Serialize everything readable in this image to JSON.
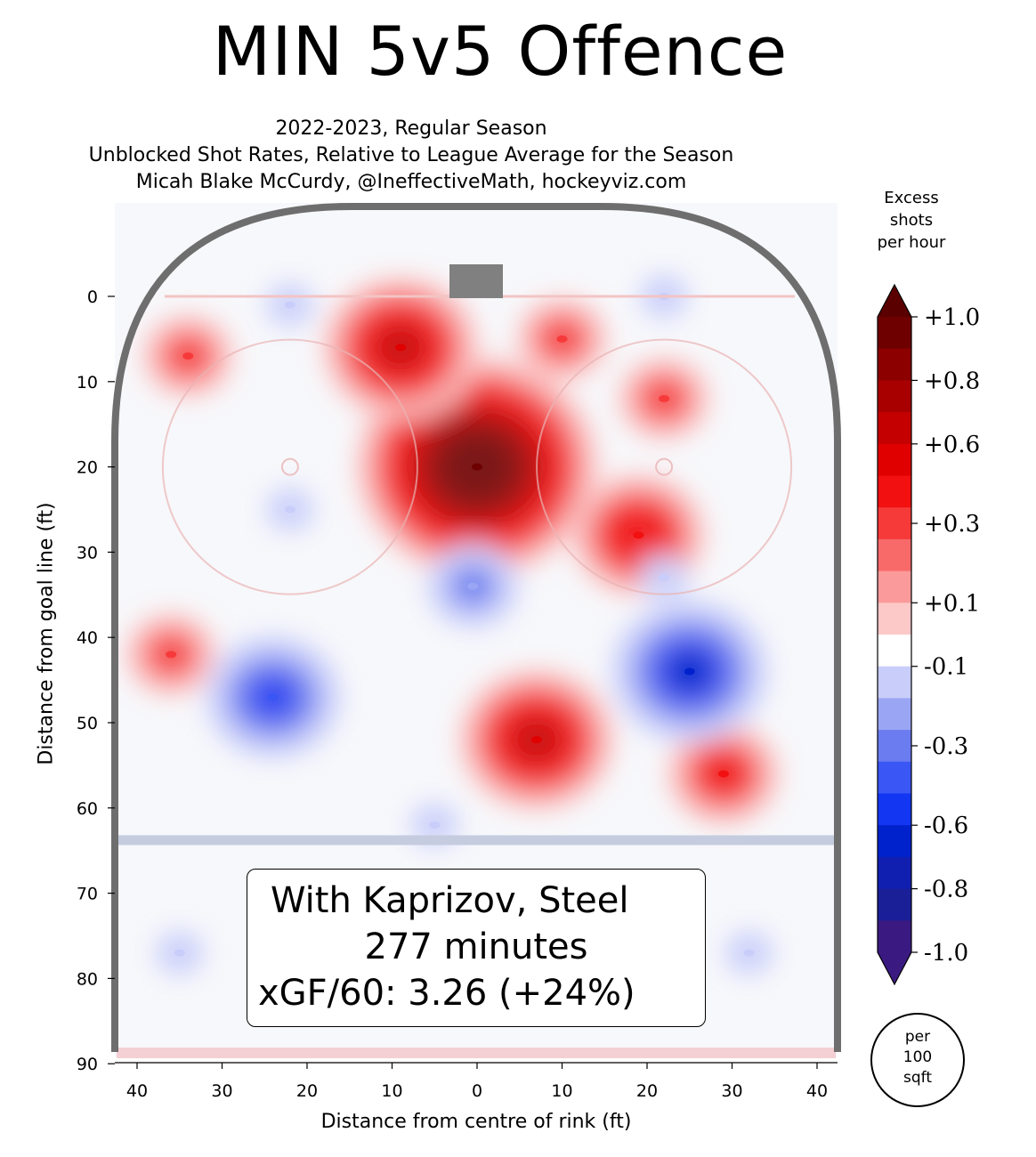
{
  "header": {
    "title": "MIN 5v5 Offence",
    "subtitle_1": "2022-2023, Regular Season",
    "subtitle_2": "Unblocked Shot Rates, Relative to League Average for the Season",
    "subtitle_3": "Micah Blake McCurdy, @IneffectiveMath, hockeyviz.com"
  },
  "legend": {
    "line_1": "With Kaprizov, Steel",
    "line_2": "277 minutes",
    "line_3": "xGF/60: 3.26 (+24%)"
  },
  "unit_note": {
    "line_1": "per",
    "line_2": "100",
    "line_3": "sqft"
  },
  "colorbar": {
    "title_1": "Excess",
    "title_2": "shots",
    "title_3": "per hour",
    "tick_labels": [
      "+1.0",
      "+0.8",
      "+0.6",
      "+0.3",
      "+0.1",
      "-0.1",
      "-0.3",
      "-0.6",
      "-0.8",
      "-1.0"
    ],
    "tick_values": [
      1.0,
      0.8,
      0.6,
      0.35,
      0.1,
      -0.1,
      -0.35,
      -0.6,
      -0.8,
      -1.0
    ],
    "levels": [
      "#6e0000",
      "#8c0000",
      "#a80000",
      "#c40000",
      "#e00000",
      "#f21010",
      "#f63a3a",
      "#f86a6a",
      "#fb9a9a",
      "#fdc8c8",
      "#ffffff",
      "#c8cdfa",
      "#9aa6f4",
      "#6a7cf0",
      "#3a56f4",
      "#1236f2",
      "#0022cc",
      "#101fb0",
      "#1a1f98",
      "#3a1a80"
    ]
  },
  "chart_data": {
    "type": "heatmap",
    "title": "MIN 5v5 Offence",
    "xlabel": "Distance from centre of rink (ft)",
    "ylabel": "Distance from goal line (ft)",
    "xlim": [
      -42,
      42
    ],
    "ylim": [
      -11,
      90
    ],
    "xticks": [
      -40,
      -30,
      -20,
      -10,
      0,
      10,
      20,
      30,
      40
    ],
    "xtick_labels": [
      "40",
      "30",
      "20",
      "10",
      "0",
      "10",
      "20",
      "30",
      "40"
    ],
    "yticks": [
      0,
      10,
      20,
      30,
      40,
      50,
      60,
      70,
      80,
      90
    ],
    "ytick_labels": [
      "0",
      "10",
      "20",
      "30",
      "40",
      "50",
      "60",
      "70",
      "80",
      "90"
    ],
    "colorbar_range": [
      -1.0,
      1.0
    ],
    "hotspots": [
      {
        "x": 0,
        "y": 20,
        "value": 1.0
      },
      {
        "x": -9,
        "y": 6,
        "value": 0.55
      },
      {
        "x": 10,
        "y": 5,
        "value": 0.35
      },
      {
        "x": 22,
        "y": 12,
        "value": 0.3
      },
      {
        "x": 19,
        "y": 28,
        "value": 0.45
      },
      {
        "x": -34,
        "y": 7,
        "value": 0.3
      },
      {
        "x": -36,
        "y": 42,
        "value": 0.35
      },
      {
        "x": 7,
        "y": 52,
        "value": 0.55
      },
      {
        "x": 29,
        "y": 56,
        "value": 0.4
      },
      {
        "x": 25,
        "y": 44,
        "value": -0.6
      },
      {
        "x": -24,
        "y": 47,
        "value": -0.45
      },
      {
        "x": -0.5,
        "y": 34,
        "value": -0.25
      },
      {
        "x": -22,
        "y": 25,
        "value": -0.15
      },
      {
        "x": 22,
        "y": 33,
        "value": -0.15
      },
      {
        "x": -22,
        "y": 1,
        "value": -0.1
      },
      {
        "x": 22,
        "y": 0,
        "value": -0.1
      },
      {
        "x": -35,
        "y": 77,
        "value": -0.1
      },
      {
        "x": 32,
        "y": 77,
        "value": -0.1
      },
      {
        "x": -5,
        "y": 62,
        "value": -0.1
      }
    ]
  }
}
